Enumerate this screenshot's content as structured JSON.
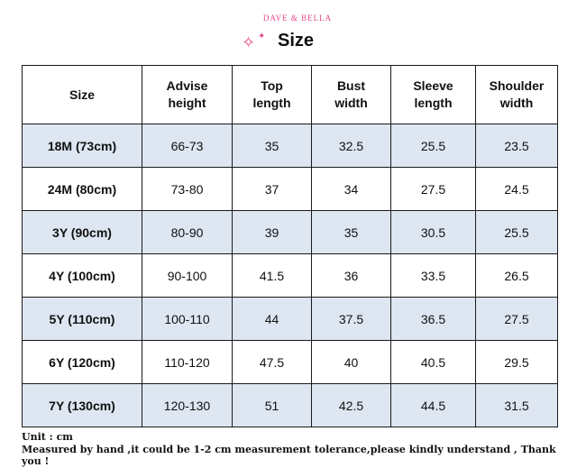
{
  "header": {
    "brand": "DAVE & BELLA",
    "title": "Size"
  },
  "table": {
    "columns": [
      "Size",
      "Advise height",
      "Top length",
      "Bust width",
      "Sleeve length",
      "Shoulder width"
    ],
    "column_lines": [
      [
        "Size"
      ],
      [
        "Advise",
        "height"
      ],
      [
        "Top",
        "length"
      ],
      [
        "Bust",
        "width"
      ],
      [
        "Sleeve",
        "length"
      ],
      [
        "Shoulder",
        "width"
      ]
    ],
    "rows": [
      [
        "18M (73cm)",
        "66-73",
        "35",
        "32.5",
        "25.5",
        "23.5"
      ],
      [
        "24M (80cm)",
        "73-80",
        "37",
        "34",
        "27.5",
        "24.5"
      ],
      [
        "3Y (90cm)",
        "80-90",
        "39",
        "35",
        "30.5",
        "25.5"
      ],
      [
        "4Y (100cm)",
        "90-100",
        "41.5",
        "36",
        "33.5",
        "26.5"
      ],
      [
        "5Y (110cm)",
        "100-110",
        "44",
        "37.5",
        "36.5",
        "27.5"
      ],
      [
        "6Y (120cm)",
        "110-120",
        "47.5",
        "40",
        "40.5",
        "29.5"
      ],
      [
        "7Y (130cm)",
        "120-130",
        "51",
        "42.5",
        "44.5",
        "31.5"
      ]
    ]
  },
  "footer": {
    "unit": "Unit : cm",
    "note": "Measured by hand ,it could be 1-2 cm measurement tolerance,please kindly understand , Thank you !"
  },
  "colors": {
    "brand_pink": "#e8478b",
    "shaded_row": "#dde6f1",
    "border": "#1a1a1a"
  }
}
